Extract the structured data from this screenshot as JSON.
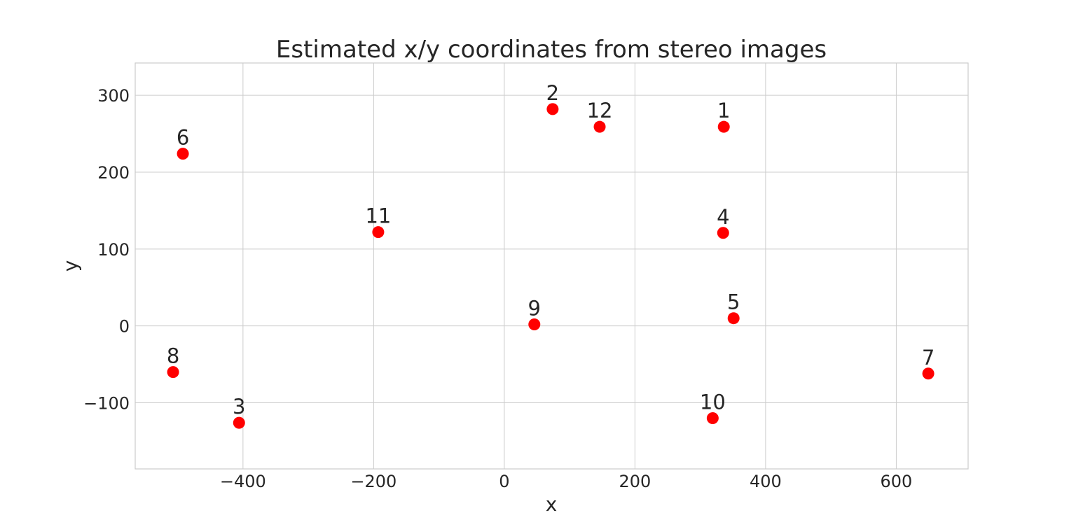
{
  "chart_data": {
    "type": "scatter",
    "title": "Estimated x/y coordinates from stereo images",
    "xlabel": "x",
    "ylabel": "y",
    "xlim": [
      -565,
      710
    ],
    "ylim": [
      -186,
      342
    ],
    "xticks": [
      -400,
      -200,
      0,
      200,
      400,
      600
    ],
    "yticks": [
      -100,
      0,
      100,
      200,
      300
    ],
    "xtick_labels": [
      "−400",
      "−200",
      "0",
      "200",
      "400",
      "600"
    ],
    "ytick_labels": [
      "−100",
      "0",
      "100",
      "200",
      "300"
    ],
    "grid": true,
    "marker_color": "#ff0000",
    "grid_color": "#cccccc",
    "text_color": "#262626",
    "points": [
      {
        "label": "1",
        "x": 336,
        "y": 259
      },
      {
        "label": "2",
        "x": 74,
        "y": 282
      },
      {
        "label": "3",
        "x": -406,
        "y": -126
      },
      {
        "label": "4",
        "x": 335,
        "y": 121
      },
      {
        "label": "5",
        "x": 351,
        "y": 10
      },
      {
        "label": "6",
        "x": -492,
        "y": 224
      },
      {
        "label": "7",
        "x": 649,
        "y": -62
      },
      {
        "label": "8",
        "x": -507,
        "y": -60
      },
      {
        "label": "9",
        "x": 46,
        "y": 2
      },
      {
        "label": "10",
        "x": 319,
        "y": -120
      },
      {
        "label": "11",
        "x": -193,
        "y": 122
      },
      {
        "label": "12",
        "x": 146,
        "y": 259
      }
    ]
  }
}
